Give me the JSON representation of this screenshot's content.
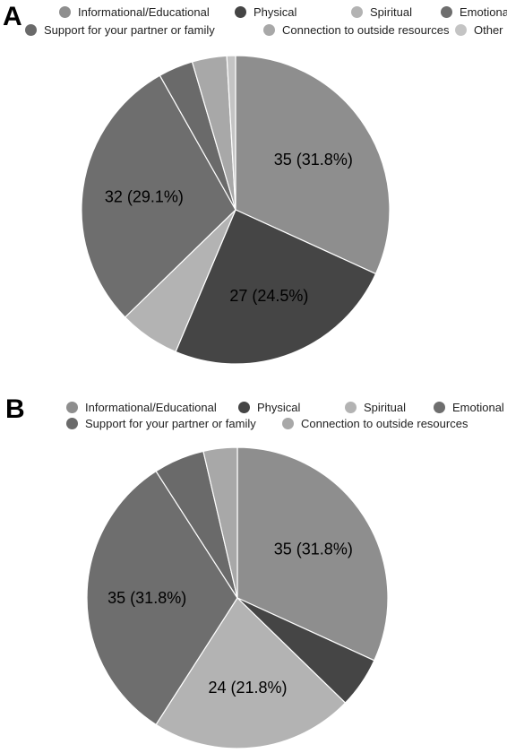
{
  "chart_data": [
    {
      "type": "pie",
      "panel_label": "A",
      "legend_placement": "top",
      "categories": [
        "Informational/Educational",
        "Physical",
        "Spiritual",
        "Emotional",
        "Support for your partner or family",
        "Connection to outside resources",
        "Other"
      ],
      "values": [
        35,
        27,
        7,
        32,
        4,
        4,
        1
      ],
      "colors": [
        "#8e8e8e",
        "#454545",
        "#b3b3b3",
        "#6e6e6e",
        "#6a6a6a",
        "#a8a8a8",
        "#c4c4c4"
      ],
      "data_labels": [
        "35 (31.8%)",
        "27 (24.5%)",
        "",
        "32 (29.1%)",
        "",
        "",
        ""
      ]
    },
    {
      "type": "pie",
      "panel_label": "B",
      "legend_placement": "top",
      "categories": [
        "Informational/Educational",
        "Physical",
        "Spiritual",
        "Emotional",
        "Support for your partner or family",
        "Connection to outside resources"
      ],
      "values": [
        35,
        6,
        24,
        35,
        6,
        4
      ],
      "colors": [
        "#8e8e8e",
        "#454545",
        "#b3b3b3",
        "#6e6e6e",
        "#6a6a6a",
        "#a8a8a8"
      ],
      "data_labels": [
        "35 (31.8%)",
        "",
        "24 (21.8%)",
        "35 (31.8%)",
        "",
        ""
      ]
    }
  ]
}
